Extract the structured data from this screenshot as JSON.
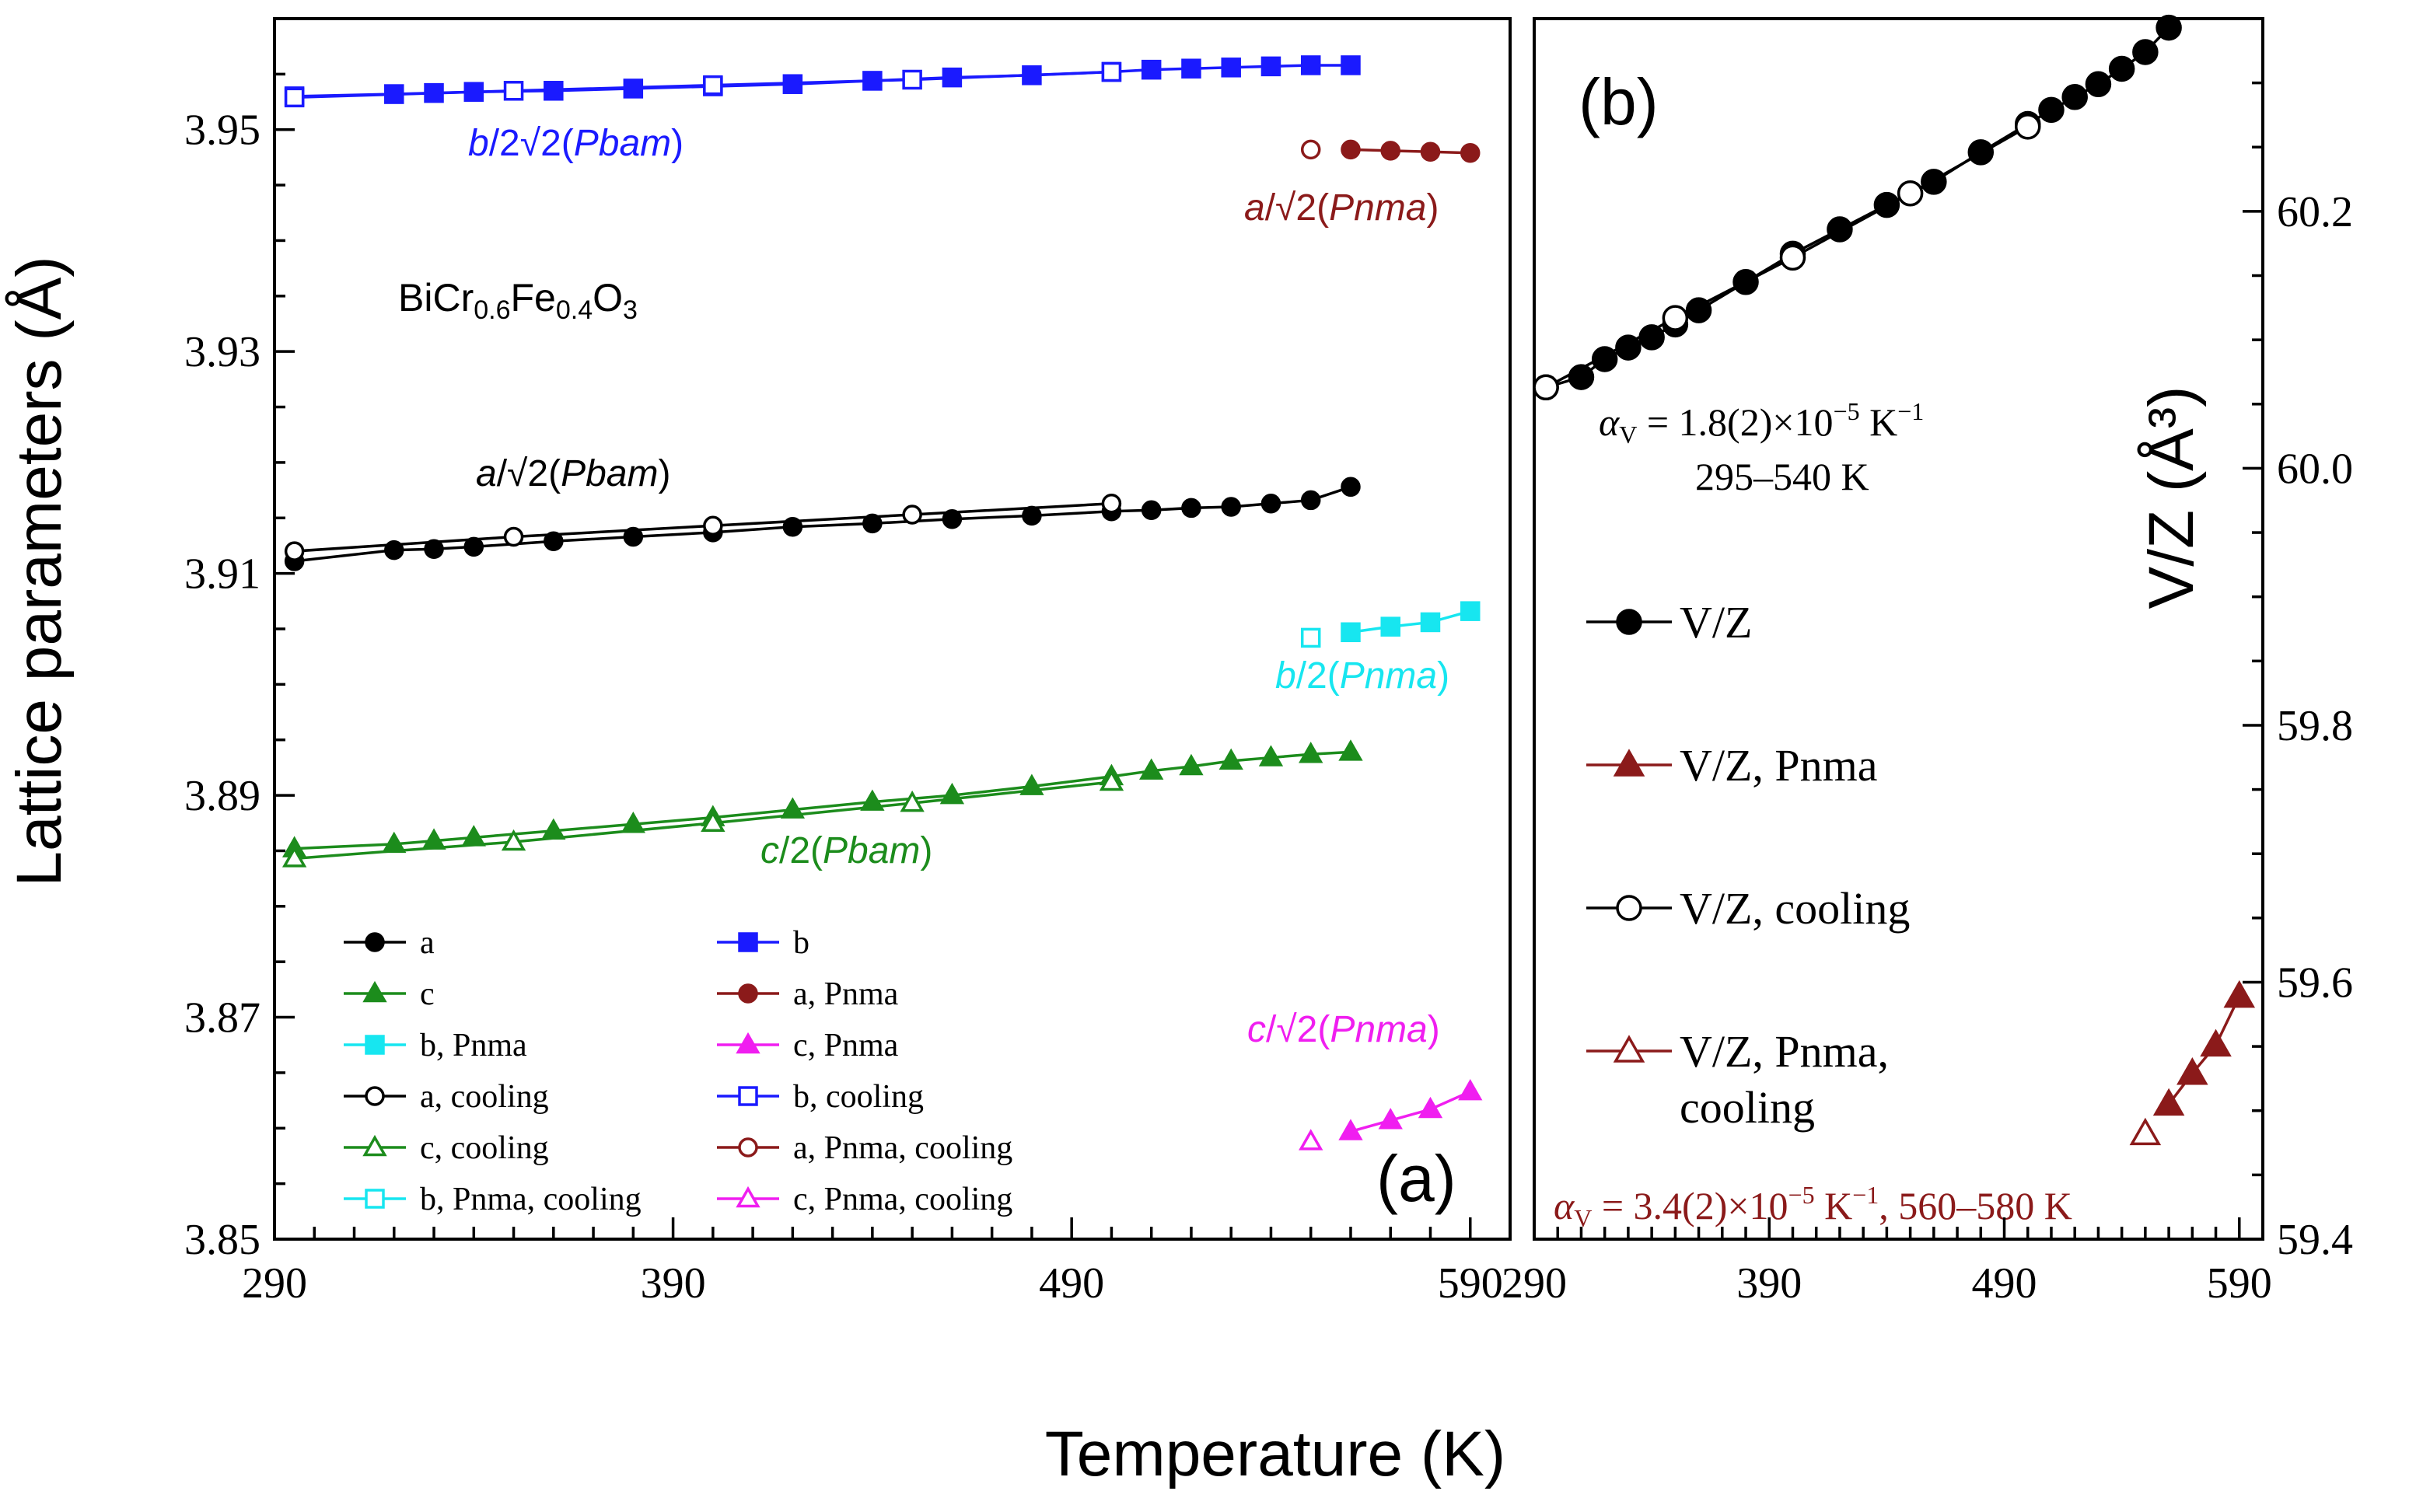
{
  "colors": {
    "black": "#000000",
    "blue": "#1a1aff",
    "darkred": "#8b1a1a",
    "cyan": "#17e6f0",
    "green": "#1c8c1c",
    "magenta": "#f01ef0"
  },
  "figure": {
    "xlabel": "Temperature (K)",
    "compound": {
      "base": "BiCr",
      "sub1": "0.6",
      "mid": "Fe",
      "sub2": "0.4",
      "end": "O",
      "sub3": "3"
    }
  },
  "chart_data": [
    {
      "type": "line",
      "panel": "a",
      "panel_label": "(a)",
      "ylabel": "Lattice parameters (Å)",
      "xlabel": "Temperature (K)",
      "xlim": [
        290,
        600
      ],
      "ylim": [
        3.85,
        3.96
      ],
      "x_ticks": [
        "290",
        "390",
        "490",
        "590"
      ],
      "y_ticks": [
        "3.85",
        "3.87",
        "3.89",
        "3.91",
        "3.93",
        "3.95"
      ],
      "series": [
        {
          "name": "a",
          "color": "black",
          "marker": "circle",
          "filled": true,
          "x": [
            295,
            320,
            330,
            340,
            360,
            380,
            400,
            420,
            440,
            460,
            480,
            500,
            510,
            520,
            530,
            540,
            550,
            560
          ],
          "y": [
            3.9111,
            3.9121,
            3.9122,
            3.9124,
            3.9129,
            3.9133,
            3.9137,
            3.9142,
            3.9145,
            3.9149,
            3.9152,
            3.9156,
            3.9157,
            3.9159,
            3.916,
            3.9163,
            3.9166,
            3.9178
          ]
        },
        {
          "name": "b",
          "color": "blue",
          "marker": "square",
          "filled": true,
          "x": [
            295,
            320,
            330,
            340,
            360,
            380,
            400,
            420,
            440,
            460,
            480,
            500,
            510,
            520,
            530,
            540,
            550,
            560
          ],
          "y": [
            3.953,
            3.9532,
            3.9533,
            3.9534,
            3.9535,
            3.9537,
            3.9539,
            3.9541,
            3.9544,
            3.9547,
            3.9549,
            3.9552,
            3.9554,
            3.9555,
            3.9556,
            3.9557,
            3.9558,
            3.9558
          ]
        },
        {
          "name": "c",
          "color": "green",
          "marker": "triangle",
          "filled": true,
          "x": [
            295,
            320,
            330,
            340,
            360,
            380,
            400,
            420,
            440,
            460,
            480,
            500,
            510,
            520,
            530,
            540,
            550,
            560
          ],
          "y": [
            3.8852,
            3.8856,
            3.8859,
            3.8862,
            3.8868,
            3.8874,
            3.888,
            3.8887,
            3.8894,
            3.89,
            3.8908,
            3.8917,
            3.8922,
            3.8926,
            3.8931,
            3.8934,
            3.8937,
            3.8939
          ]
        },
        {
          "name": "a, Pnma",
          "color": "darkred",
          "marker": "circle",
          "filled": true,
          "x": [
            560,
            570,
            580,
            590
          ],
          "y": [
            3.9482,
            3.9481,
            3.948,
            3.9479
          ]
        },
        {
          "name": "b, Pnma",
          "color": "cyan",
          "marker": "square",
          "filled": true,
          "x": [
            560,
            570,
            580,
            590
          ],
          "y": [
            3.9047,
            3.9052,
            3.9056,
            3.9066
          ]
        },
        {
          "name": "c, Pnma",
          "color": "magenta",
          "marker": "triangle",
          "filled": true,
          "x": [
            560,
            570,
            580,
            590
          ],
          "y": [
            3.8597,
            3.8607,
            3.8617,
            3.8633
          ]
        },
        {
          "name": "a, cooling",
          "color": "black",
          "marker": "circle",
          "filled": false,
          "x": [
            295,
            350,
            400,
            450,
            500
          ],
          "y": [
            3.912,
            3.9133,
            3.9143,
            3.9153,
            3.9163
          ]
        },
        {
          "name": "b, cooling",
          "color": "blue",
          "marker": "square",
          "filled": false,
          "x": [
            295,
            350,
            400,
            450,
            500
          ],
          "y": [
            3.9529,
            3.9535,
            3.954,
            3.9545,
            3.9552
          ]
        },
        {
          "name": "c, cooling",
          "color": "green",
          "marker": "triangle",
          "filled": false,
          "x": [
            295,
            350,
            400,
            450,
            500
          ],
          "y": [
            3.8843,
            3.8858,
            3.8875,
            3.8893,
            3.8912
          ]
        },
        {
          "name": "a, Pnma, cooling",
          "color": "darkred",
          "marker": "circle",
          "filled": false,
          "x": [
            550
          ],
          "y": [
            3.9482
          ]
        },
        {
          "name": "b, Pnma, cooling",
          "color": "cyan",
          "marker": "square",
          "filled": false,
          "x": [
            550
          ],
          "y": [
            3.9042
          ]
        },
        {
          "name": "c, Pnma, cooling",
          "color": "magenta",
          "marker": "triangle",
          "filled": false,
          "x": [
            550
          ],
          "y": [
            3.8588
          ]
        }
      ],
      "annotations": [
        {
          "color": "blue",
          "pre": "b",
          "mid": "/2√2(",
          "it": "Pbam",
          "post": ")"
        },
        {
          "color": "darkred",
          "pre": "a",
          "mid": "/√2(",
          "it": "Pnma",
          "post": ")"
        },
        {
          "color": "black",
          "pre": "a",
          "mid": "/√2(",
          "it": "Pbam",
          "post": ")"
        },
        {
          "color": "cyan",
          "pre": "b",
          "mid": "/2(",
          "it": "Pnma",
          "post": ")"
        },
        {
          "color": "green",
          "pre": "c",
          "mid": "/2(",
          "it": "Pbam",
          "post": ")"
        },
        {
          "color": "magenta",
          "pre": "c",
          "mid": "/√2(",
          "it": "Pnma",
          "post": ")"
        }
      ],
      "legend": {
        "placement": "lower-left",
        "entries": [
          "a",
          "b",
          "c",
          "a, Pnma",
          "b, Pnma",
          "c, Pnma",
          "a, cooling",
          "b, cooling",
          "c, cooling",
          "a, Pnma, cooling",
          "b, Pnma, cooling",
          "c, Pnma, cooling"
        ]
      }
    },
    {
      "type": "line",
      "panel": "b",
      "panel_label": "(b)",
      "ylabel": "V/Z (Å³)",
      "xlabel": "Temperature (K)",
      "xlim": [
        290,
        600
      ],
      "ylim": [
        59.4,
        60.35
      ],
      "x_ticks": [
        "290",
        "390",
        "490",
        "590"
      ],
      "y_ticks": [
        "59.4",
        "59.6",
        "59.8",
        "60.0",
        "60.2"
      ],
      "series": [
        {
          "name": "V/Z",
          "color": "black",
          "marker": "circle",
          "filled": true,
          "x": [
            295,
            310,
            320,
            330,
            340,
            350,
            360,
            380,
            400,
            420,
            440,
            460,
            480,
            500,
            510,
            520,
            530,
            540,
            550,
            560
          ],
          "y": [
            60.063,
            60.071,
            60.085,
            60.094,
            60.102,
            60.112,
            60.123,
            60.145,
            60.167,
            60.186,
            60.205,
            60.223,
            60.246,
            60.268,
            60.279,
            60.289,
            60.299,
            60.311,
            60.324,
            60.343
          ]
        },
        {
          "name": "V/Z, Pnma",
          "color": "darkred",
          "marker": "triangle",
          "filled": true,
          "x": [
            560,
            570,
            580,
            590
          ],
          "y": [
            59.505,
            59.529,
            59.551,
            59.589
          ]
        },
        {
          "name": "V/Z, cooling",
          "color": "black",
          "marker": "circle",
          "filled": false,
          "x": [
            295,
            350,
            400,
            450,
            500
          ],
          "y": [
            60.063,
            60.117,
            60.164,
            60.214,
            60.266
          ]
        },
        {
          "name": "V/Z, Pnma, cooling",
          "color": "darkred",
          "marker": "triangle",
          "filled": false,
          "x": [
            550
          ],
          "y": [
            59.482
          ]
        }
      ],
      "annotations": {
        "alpha1_sym": "α",
        "alpha1_sub": "V",
        "alpha1_val": " = 1.8(2)×10",
        "alpha1_exp": "−5",
        "alpha1_unit": " K",
        "alpha1_unitexp": "−1",
        "alpha1_range": "295–540 K",
        "alpha2_sym": "α",
        "alpha2_sub": "V",
        "alpha2_val": " = 3.4(2)×10",
        "alpha2_exp": "−5",
        "alpha2_unit": " K",
        "alpha2_unitexp": "−1",
        "alpha2_range": ", 560–580 K"
      },
      "legend": {
        "placement": "center",
        "entries": [
          "V/Z",
          "V/Z, Pnma",
          "V/Z, cooling",
          "V/Z, Pnma,",
          "cooling"
        ]
      }
    }
  ]
}
